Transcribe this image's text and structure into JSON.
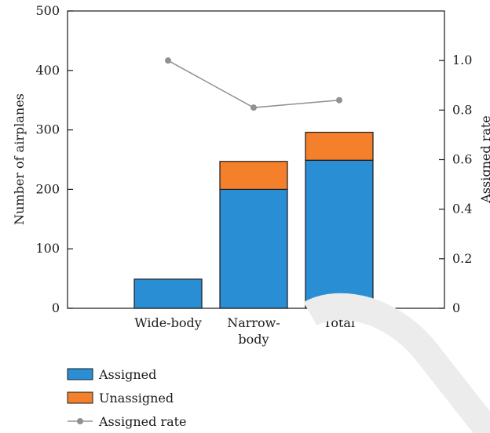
{
  "chart_data": {
    "type": "bar",
    "stacked": true,
    "categories": [
      "Wide-body",
      "Narrow-body",
      "Total"
    ],
    "category_label_lines": [
      [
        "Wide-body"
      ],
      [
        "Narrow-",
        "body"
      ],
      [
        "Total"
      ]
    ],
    "series": [
      {
        "name": "Assigned",
        "values": [
          49,
          200,
          249
        ],
        "color": "#2a8ed4",
        "axis": "left"
      },
      {
        "name": "Unassigned",
        "values": [
          0,
          47,
          47
        ],
        "color": "#f4802c",
        "axis": "left"
      }
    ],
    "line_series": {
      "name": "Assigned rate",
      "values": [
        1.0,
        0.81,
        0.84
      ],
      "color": "#909090",
      "axis": "right"
    },
    "ylabel": "Number of airplanes",
    "ylabel_right": "Assigned rate",
    "ylim": [
      0,
      500
    ],
    "yticks": [
      0,
      100,
      200,
      300,
      400,
      500
    ],
    "ylim_right": [
      0,
      1.2
    ],
    "yticks_right": [
      0,
      0.2,
      0.4,
      0.6,
      0.8,
      1.0
    ],
    "ytick_labels_right": [
      "0",
      "0.2",
      "0.4",
      "0.6",
      "0.8",
      "1.0"
    ],
    "grid": false,
    "legend_position": "bottom-left"
  }
}
